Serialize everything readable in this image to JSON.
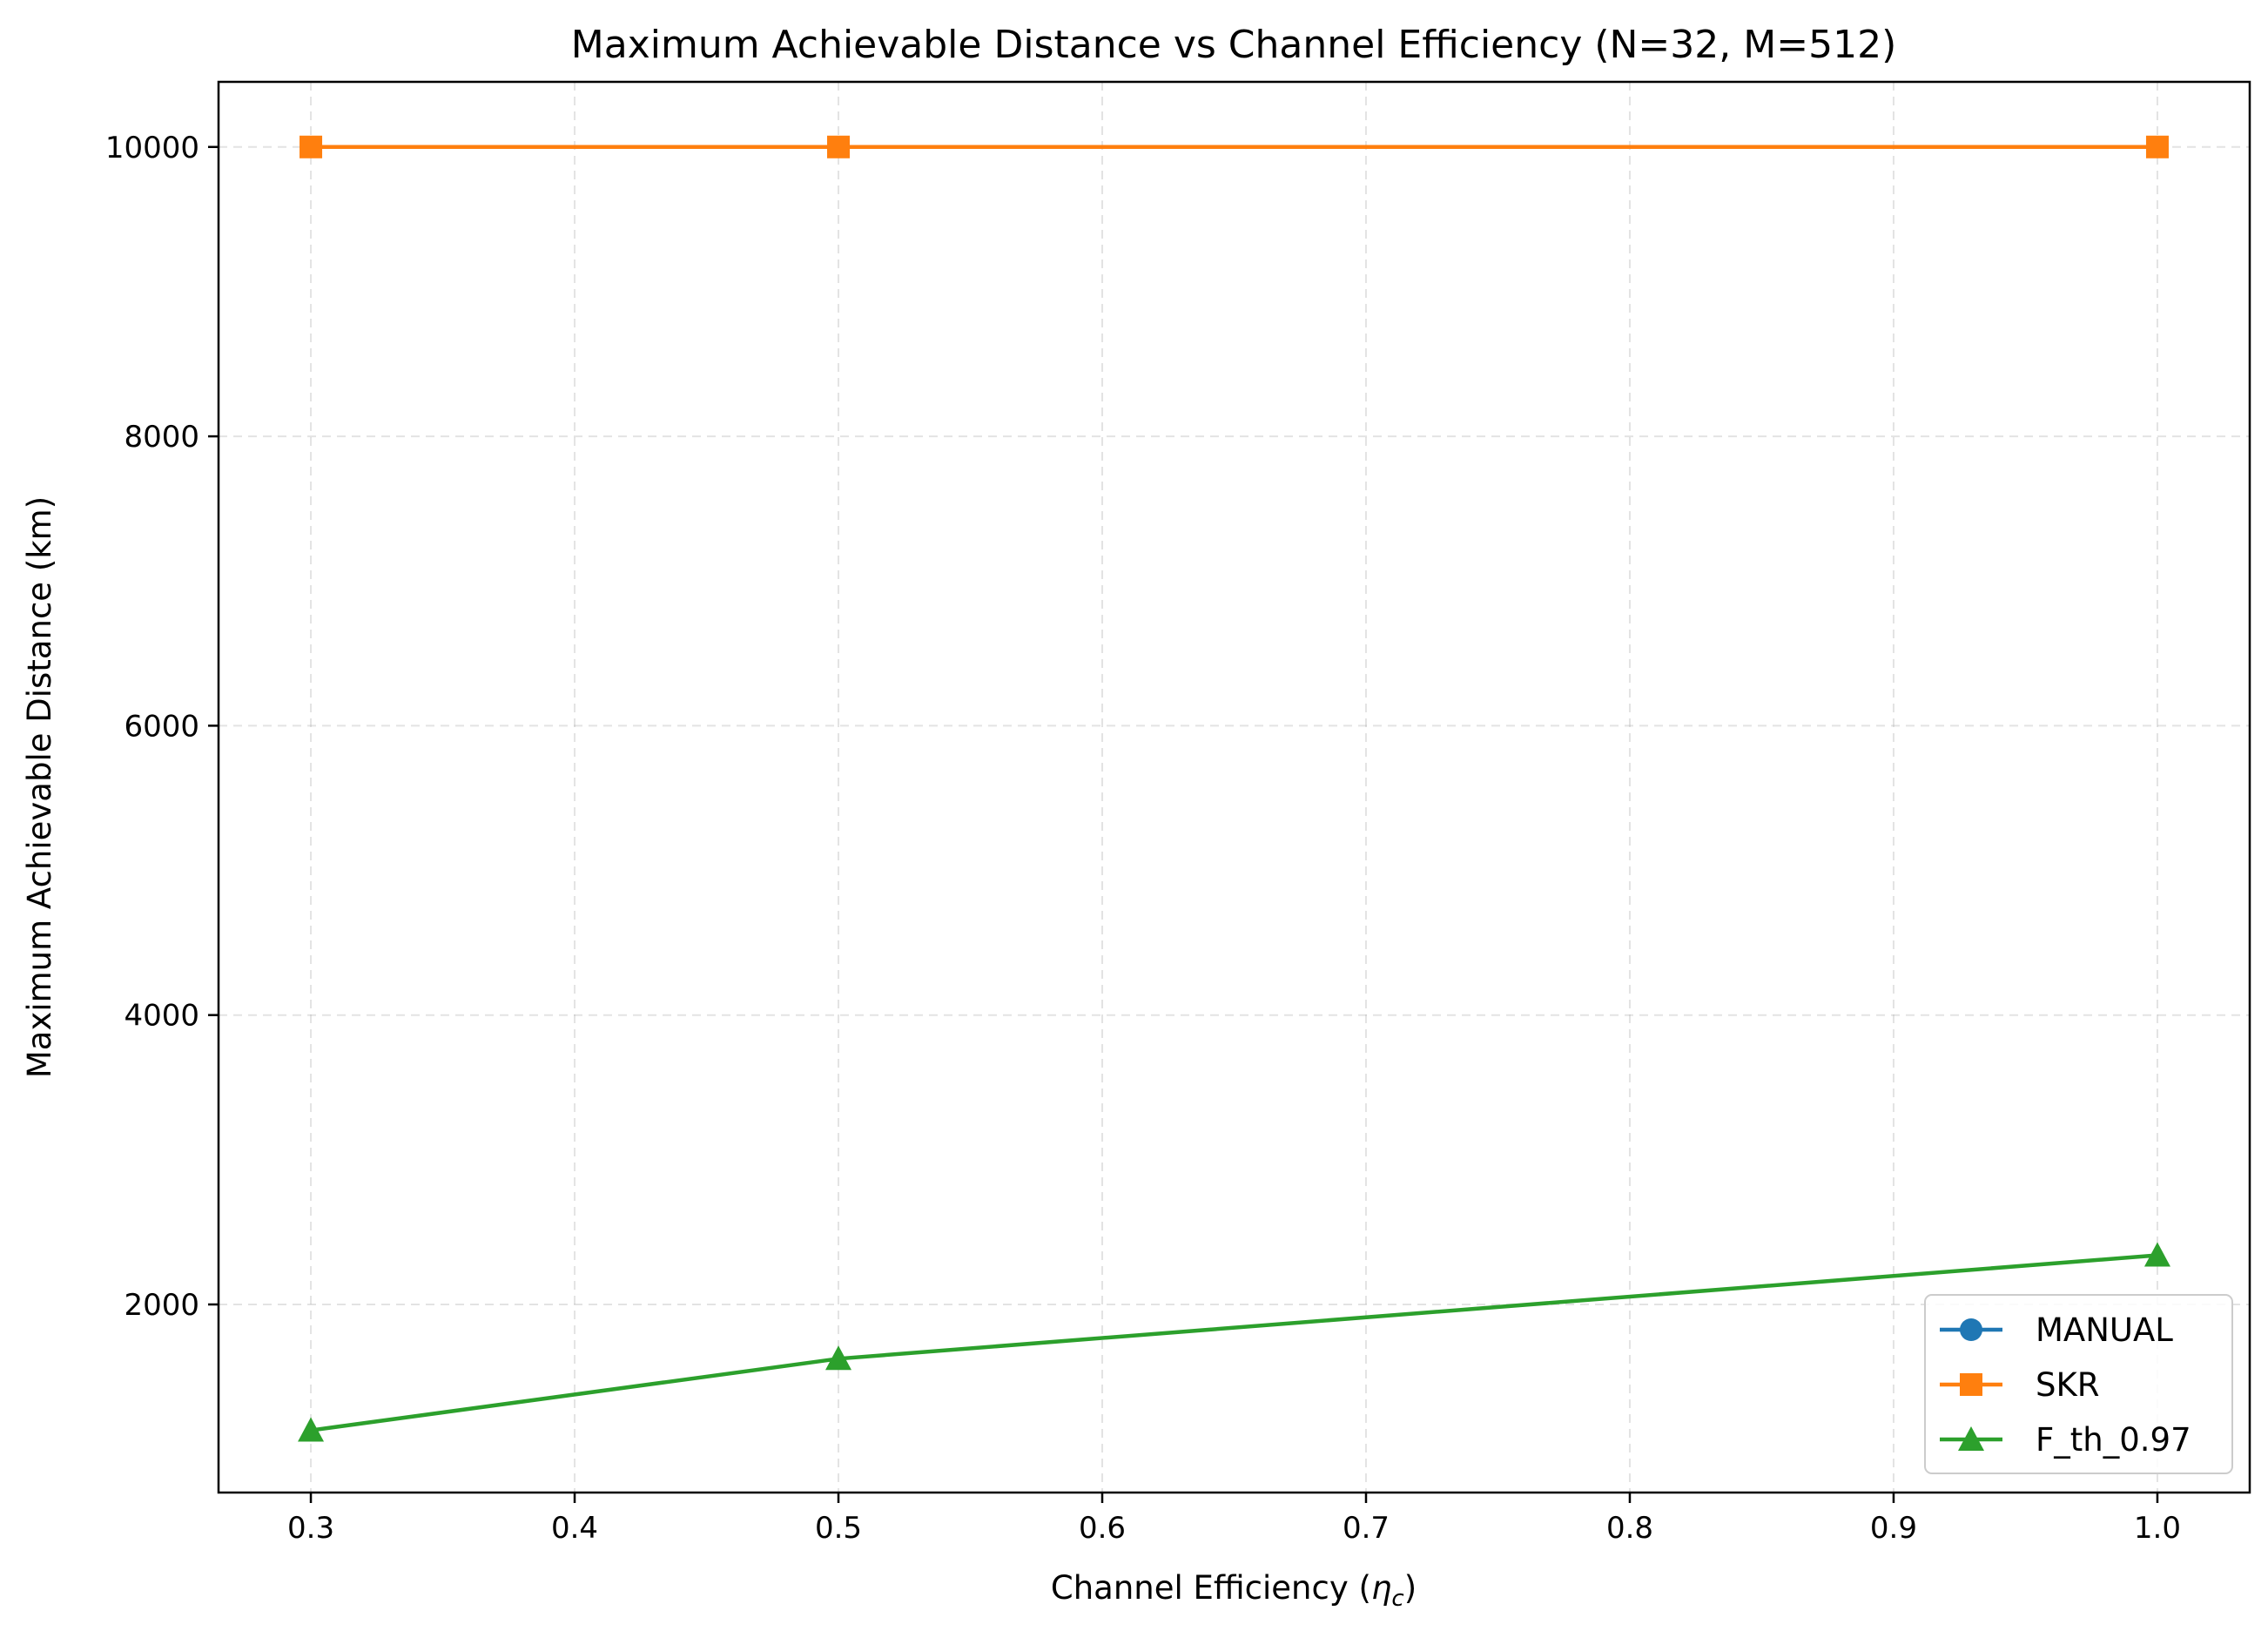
{
  "chart_data": {
    "type": "line",
    "title": "Maximum Achievable Distance vs Channel Efficiency (N=32, M=512)",
    "xlabel": "Channel Efficiency (",
    "xlabel_symbol": "η",
    "xlabel_subscript": "c",
    "xlabel_suffix": ")",
    "ylabel": "Maximum Achievable Distance (km)",
    "xlim": [
      0.265,
      1.035
    ],
    "ylim": [
      700,
      10450
    ],
    "xticks": [
      0.3,
      0.4,
      0.5,
      0.6,
      0.7,
      0.8,
      0.9,
      1.0
    ],
    "xtick_labels": [
      "0.3",
      "0.4",
      "0.5",
      "0.6",
      "0.7",
      "0.8",
      "0.9",
      "1.0"
    ],
    "yticks": [
      2000,
      4000,
      6000,
      8000,
      10000
    ],
    "ytick_labels": [
      "2000",
      "4000",
      "6000",
      "8000",
      "10000"
    ],
    "grid": true,
    "legend_position": "lower-right",
    "series": [
      {
        "name": "MANUAL",
        "color": "#1f77b4",
        "marker": "circle",
        "x": [],
        "y": []
      },
      {
        "name": "SKR",
        "color": "#ff7f0e",
        "marker": "square",
        "x": [
          0.3,
          0.5,
          1.0
        ],
        "y": [
          10000,
          10000,
          10000
        ]
      },
      {
        "name": "F_th_0.97",
        "color": "#2ca02c",
        "marker": "triangle",
        "x": [
          0.3,
          0.5,
          1.0
        ],
        "y": [
          1130,
          1625,
          2340
        ]
      }
    ]
  }
}
